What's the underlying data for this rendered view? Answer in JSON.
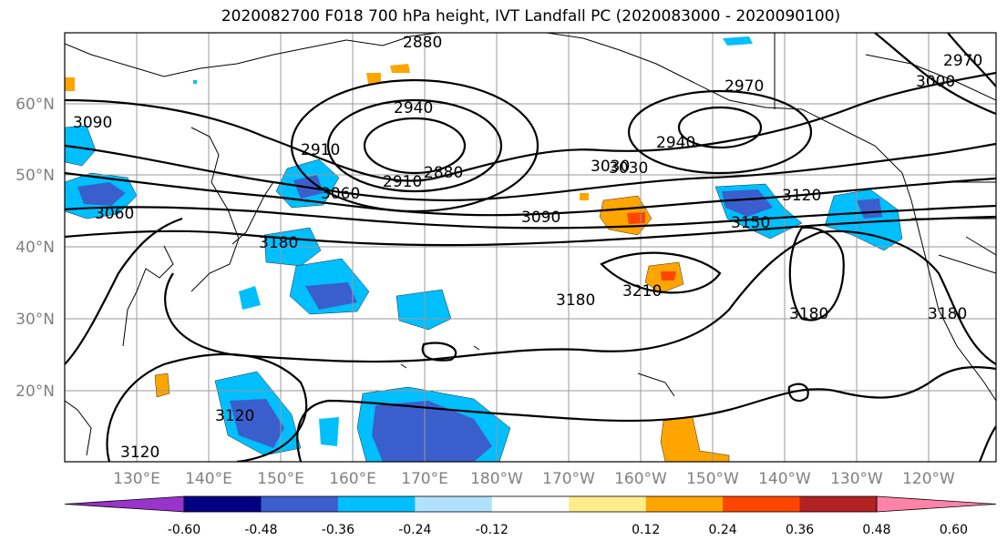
{
  "title": "2020082700 F018 700 hPa height, IVT Landfall PC (2020083000 - 2020090100)",
  "map": {
    "lat_labels": [
      "60°N",
      "50°N",
      "40°N",
      "30°N",
      "20°N"
    ],
    "lon_labels": [
      "130°E",
      "140°E",
      "150°E",
      "160°E",
      "170°E",
      "180°W",
      "170°W",
      "160°W",
      "150°W",
      "140°W",
      "130°W",
      "120°W"
    ],
    "contour_labels": [
      "2880",
      "2940",
      "2910",
      "2910",
      "2880",
      "3060",
      "3030",
      "3090",
      "2970",
      "2940",
      "3030",
      "3120",
      "3150",
      "2970",
      "3000",
      "3060",
      "3180",
      "3180",
      "3210",
      "3180",
      "3180",
      "3120",
      "3120",
      "3090"
    ]
  },
  "colorbar": {
    "colors": [
      "#9933cc",
      "#000080",
      "#3a5fcd",
      "#00bfff",
      "#b0e2ff",
      "#ffffff",
      "#ffec8b",
      "#ffa500",
      "#ff4500",
      "#b22222",
      "#ff82ab"
    ],
    "tick_labels": [
      "-0.60",
      "-0.48",
      "-0.36",
      "-0.24",
      "-0.12",
      "0.12",
      "0.24",
      "0.36",
      "0.48",
      "0.60"
    ]
  }
}
